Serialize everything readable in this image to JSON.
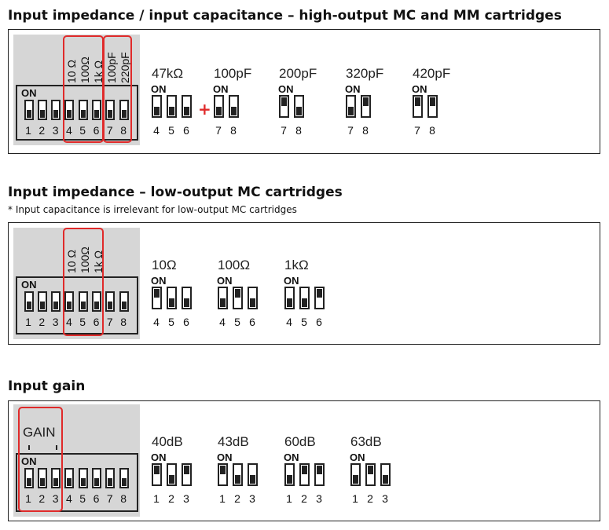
{
  "sections": [
    {
      "title": "Input impedance / input capacitance – high-output MC and MM cartridges",
      "panel": {
        "on": "ON",
        "numbers": [
          "1",
          "2",
          "3",
          "4",
          "5",
          "6",
          "7",
          "8"
        ],
        "states": [
          0,
          0,
          0,
          0,
          0,
          0,
          0,
          0
        ],
        "labels": [
          "10 Ω",
          "100Ω",
          "1k Ω",
          "100pF",
          "220pF"
        ]
      },
      "plus": "+",
      "groups": [
        {
          "label": "47kΩ",
          "on": "ON",
          "numbers": [
            "4",
            "5",
            "6"
          ],
          "states": [
            0,
            0,
            0
          ]
        },
        {
          "label": "100pF",
          "on": "ON",
          "numbers": [
            "7",
            "8"
          ],
          "states": [
            0,
            0
          ]
        },
        {
          "label": "200pF",
          "on": "ON",
          "numbers": [
            "7",
            "8"
          ],
          "states": [
            1,
            0
          ]
        },
        {
          "label": "320pF",
          "on": "ON",
          "numbers": [
            "7",
            "8"
          ],
          "states": [
            0,
            1
          ]
        },
        {
          "label": "420pF",
          "on": "ON",
          "numbers": [
            "7",
            "8"
          ],
          "states": [
            1,
            1
          ]
        }
      ]
    },
    {
      "title": "Input impedance – low-output MC cartridges",
      "note": "* Input capacitance is irrelevant for low-output MC cartridges",
      "panel": {
        "on": "ON",
        "numbers": [
          "1",
          "2",
          "3",
          "4",
          "5",
          "6",
          "7",
          "8"
        ],
        "states": [
          0,
          0,
          0,
          0,
          0,
          0,
          0,
          0
        ],
        "labels": [
          "10 Ω",
          "100Ω",
          "1k Ω"
        ]
      },
      "groups": [
        {
          "label": "10Ω",
          "on": "ON",
          "numbers": [
            "4",
            "5",
            "6"
          ],
          "states": [
            1,
            0,
            0
          ]
        },
        {
          "label": "100Ω",
          "on": "ON",
          "numbers": [
            "4",
            "5",
            "6"
          ],
          "states": [
            0,
            1,
            0
          ]
        },
        {
          "label": "1kΩ",
          "on": "ON",
          "numbers": [
            "4",
            "5",
            "6"
          ],
          "states": [
            0,
            0,
            1
          ]
        }
      ]
    },
    {
      "title": "Input gain",
      "panel": {
        "on": "ON",
        "numbers": [
          "1",
          "2",
          "3",
          "4",
          "5",
          "6",
          "7",
          "8"
        ],
        "states": [
          0,
          0,
          0,
          0,
          0,
          0,
          0,
          0
        ],
        "gain_label": "GAIN"
      },
      "groups": [
        {
          "label": "40dB",
          "on": "ON",
          "numbers": [
            "1",
            "2",
            "3"
          ],
          "states": [
            1,
            0,
            1
          ]
        },
        {
          "label": "43dB",
          "on": "ON",
          "numbers": [
            "1",
            "2",
            "3"
          ],
          "states": [
            1,
            0,
            0
          ]
        },
        {
          "label": "60dB",
          "on": "ON",
          "numbers": [
            "1",
            "2",
            "3"
          ],
          "states": [
            0,
            1,
            1
          ]
        },
        {
          "label": "63dB",
          "on": "ON",
          "numbers": [
            "1",
            "2",
            "3"
          ],
          "states": [
            0,
            1,
            0
          ]
        }
      ]
    }
  ]
}
